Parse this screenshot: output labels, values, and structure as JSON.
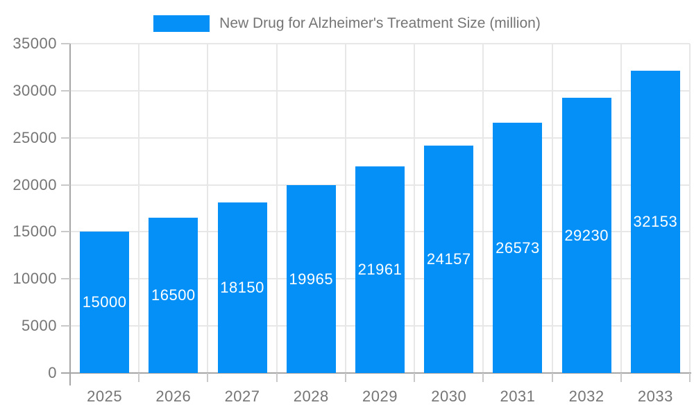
{
  "chart_data": {
    "type": "bar",
    "title": "New Drug for Alzheimer's Treatment Size (million)",
    "legend": [
      "New Drug for Alzheimer's Treatment Size (million)"
    ],
    "legend_position": "top-center",
    "categories": [
      "2025",
      "2026",
      "2027",
      "2028",
      "2029",
      "2030",
      "2031",
      "2032",
      "2033"
    ],
    "series": [
      {
        "name": "New Drug for Alzheimer's Treatment Size (million)",
        "values": [
          15000,
          16500,
          18150,
          19965,
          21961,
          24157,
          26573,
          29230,
          32153
        ]
      }
    ],
    "bar_value_labels": [
      "15000",
      "16500",
      "18150",
      "19965",
      "21961",
      "24157",
      "26573",
      "29230",
      "32153"
    ],
    "xlabel": "",
    "ylabel": "",
    "ylim": [
      0,
      35000
    ],
    "yticks": [
      0,
      5000,
      10000,
      15000,
      20000,
      25000,
      30000,
      35000
    ],
    "ytick_labels": [
      "0",
      "5000",
      "10000",
      "15000",
      "20000",
      "25000",
      "30000",
      "35000"
    ],
    "grid": true,
    "colors": {
      "bar": "#0590f8",
      "bar_label_text": "#ffffff",
      "axis_text": "#757575",
      "axis_line": "#a6a6a6",
      "gridline": "#e7e7e7",
      "tick": "#c9c9c9",
      "background": "#ffffff"
    }
  }
}
